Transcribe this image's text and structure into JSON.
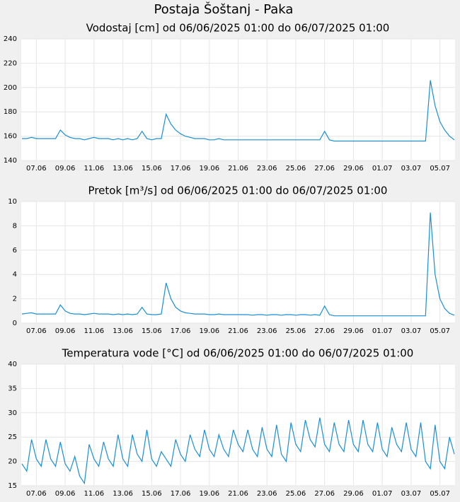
{
  "title": "Postaja Šoštanj - Paka",
  "chart_data": [
    {
      "type": "line",
      "title": "Vodostaj [cm] od 06/06/2025 01:00 do 06/07/2025 01:00",
      "categories": [
        null,
        null,
        null,
        "07.06",
        null,
        null,
        null,
        null,
        null,
        "09.06",
        null,
        null,
        null,
        null,
        null,
        "11.06",
        null,
        null,
        null,
        null,
        null,
        "13.06",
        null,
        null,
        null,
        null,
        null,
        "15.06",
        null,
        null,
        null,
        null,
        null,
        "17.06",
        null,
        null,
        null,
        null,
        null,
        "19.06",
        null,
        null,
        null,
        null,
        null,
        "21.06",
        null,
        null,
        null,
        null,
        null,
        "23.06",
        null,
        null,
        null,
        null,
        null,
        "25.06",
        null,
        null,
        null,
        null,
        null,
        "27.06",
        null,
        null,
        null,
        null,
        null,
        "29.06",
        null,
        null,
        null,
        null,
        null,
        "01.07",
        null,
        null,
        null,
        null,
        null,
        "03.07",
        null,
        null,
        null,
        null,
        null,
        "05.07",
        null,
        null,
        null
      ],
      "series": [
        {
          "color": "#1a8fd6",
          "values": [
            158,
            158,
            159,
            158,
            158,
            158,
            158,
            158,
            165,
            161,
            159,
            158,
            158,
            157,
            158,
            159,
            158,
            158,
            158,
            157,
            158,
            157,
            158,
            157,
            158,
            164,
            158,
            157,
            158,
            158,
            178,
            170,
            165,
            162,
            160,
            159,
            158,
            158,
            158,
            157,
            157,
            158,
            157,
            157,
            157,
            157,
            157,
            157,
            157,
            157,
            157,
            157,
            157,
            157,
            157,
            157,
            157,
            157,
            157,
            157,
            157,
            157,
            157,
            164,
            157,
            156,
            156,
            156,
            156,
            156,
            156,
            156,
            156,
            156,
            156,
            156,
            156,
            156,
            156,
            156,
            156,
            156,
            156,
            156,
            156,
            206,
            185,
            172,
            165,
            160,
            157
          ]
        }
      ],
      "ylim": [
        140,
        240
      ],
      "yticks": [
        140,
        160,
        180,
        200,
        220,
        240
      ],
      "grid": true
    },
    {
      "type": "line",
      "title": "Pretok [m³/s] od 06/06/2025 01:00 do 06/07/2025 01:00",
      "categories": [
        null,
        null,
        null,
        "07.06",
        null,
        null,
        null,
        null,
        null,
        "09.06",
        null,
        null,
        null,
        null,
        null,
        "11.06",
        null,
        null,
        null,
        null,
        null,
        "13.06",
        null,
        null,
        null,
        null,
        null,
        "15.06",
        null,
        null,
        null,
        null,
        null,
        "17.06",
        null,
        null,
        null,
        null,
        null,
        "19.06",
        null,
        null,
        null,
        null,
        null,
        "21.06",
        null,
        null,
        null,
        null,
        null,
        "23.06",
        null,
        null,
        null,
        null,
        null,
        "25.06",
        null,
        null,
        null,
        null,
        null,
        "27.06",
        null,
        null,
        null,
        null,
        null,
        "29.06",
        null,
        null,
        null,
        null,
        null,
        "01.07",
        null,
        null,
        null,
        null,
        null,
        "03.07",
        null,
        null,
        null,
        null,
        null,
        "05.07",
        null,
        null,
        null
      ],
      "series": [
        {
          "color": "#1a8fd6",
          "values": [
            0.75,
            0.8,
            0.85,
            0.75,
            0.75,
            0.75,
            0.75,
            0.75,
            1.5,
            1.0,
            0.8,
            0.75,
            0.75,
            0.7,
            0.75,
            0.8,
            0.75,
            0.75,
            0.75,
            0.7,
            0.75,
            0.7,
            0.75,
            0.7,
            0.75,
            1.3,
            0.75,
            0.7,
            0.7,
            0.75,
            3.3,
            2.0,
            1.3,
            1.0,
            0.85,
            0.8,
            0.75,
            0.75,
            0.75,
            0.7,
            0.7,
            0.75,
            0.7,
            0.7,
            0.7,
            0.7,
            0.7,
            0.7,
            0.65,
            0.7,
            0.7,
            0.65,
            0.7,
            0.7,
            0.65,
            0.7,
            0.7,
            0.65,
            0.7,
            0.7,
            0.65,
            0.7,
            0.65,
            1.4,
            0.7,
            0.6,
            0.6,
            0.6,
            0.6,
            0.6,
            0.6,
            0.6,
            0.6,
            0.6,
            0.6,
            0.6,
            0.6,
            0.6,
            0.6,
            0.6,
            0.6,
            0.6,
            0.6,
            0.6,
            0.6,
            9.1,
            4.0,
            2.0,
            1.2,
            0.8,
            0.65
          ]
        }
      ],
      "ylim": [
        0,
        10
      ],
      "yticks": [
        0,
        2,
        4,
        6,
        8,
        10
      ],
      "grid": true
    },
    {
      "type": "line",
      "title": "Temperatura vode [°C] od 06/06/2025 01:00 do 06/07/2025 01:00",
      "categories": [
        null,
        null,
        null,
        "07.06",
        null,
        null,
        null,
        null,
        null,
        "09.06",
        null,
        null,
        null,
        null,
        null,
        "11.06",
        null,
        null,
        null,
        null,
        null,
        "13.06",
        null,
        null,
        null,
        null,
        null,
        "15.06",
        null,
        null,
        null,
        null,
        null,
        "17.06",
        null,
        null,
        null,
        null,
        null,
        "19.06",
        null,
        null,
        null,
        null,
        null,
        "21.06",
        null,
        null,
        null,
        null,
        null,
        "23.06",
        null,
        null,
        null,
        null,
        null,
        "25.06",
        null,
        null,
        null,
        null,
        null,
        "27.06",
        null,
        null,
        null,
        null,
        null,
        "29.06",
        null,
        null,
        null,
        null,
        null,
        "01.07",
        null,
        null,
        null,
        null,
        null,
        "03.07",
        null,
        null,
        null,
        null,
        null,
        "05.07",
        null,
        null,
        null
      ],
      "series": [
        {
          "color": "#1a8fd6",
          "values": [
            19.5,
            18,
            24.5,
            20.5,
            19,
            24.5,
            20.5,
            19,
            24,
            19.5,
            18,
            21,
            17,
            15.5,
            23.5,
            20.5,
            19,
            24,
            20.5,
            19,
            25.5,
            20.5,
            19,
            25.5,
            21.5,
            20,
            26.5,
            20.5,
            19,
            22,
            20.5,
            19,
            24.5,
            21.5,
            20,
            25.5,
            22.5,
            21,
            26.5,
            22.5,
            21,
            25.5,
            22.5,
            21,
            26.5,
            23.5,
            22,
            26.5,
            22.5,
            21,
            27,
            22.5,
            21,
            27.5,
            21.5,
            20,
            28,
            23.5,
            22,
            28.5,
            24.5,
            23,
            29,
            23.5,
            22,
            28,
            23.5,
            22,
            28.5,
            23.5,
            22,
            28.5,
            23.5,
            22,
            28,
            22.5,
            21,
            27,
            23.5,
            22,
            28,
            22.5,
            21,
            28,
            20,
            18.5,
            27.5,
            20,
            18.5,
            25,
            21.5
          ]
        }
      ],
      "ylim": [
        15,
        40
      ],
      "yticks": [
        15,
        20,
        25,
        30,
        35,
        40
      ],
      "grid": true
    }
  ]
}
